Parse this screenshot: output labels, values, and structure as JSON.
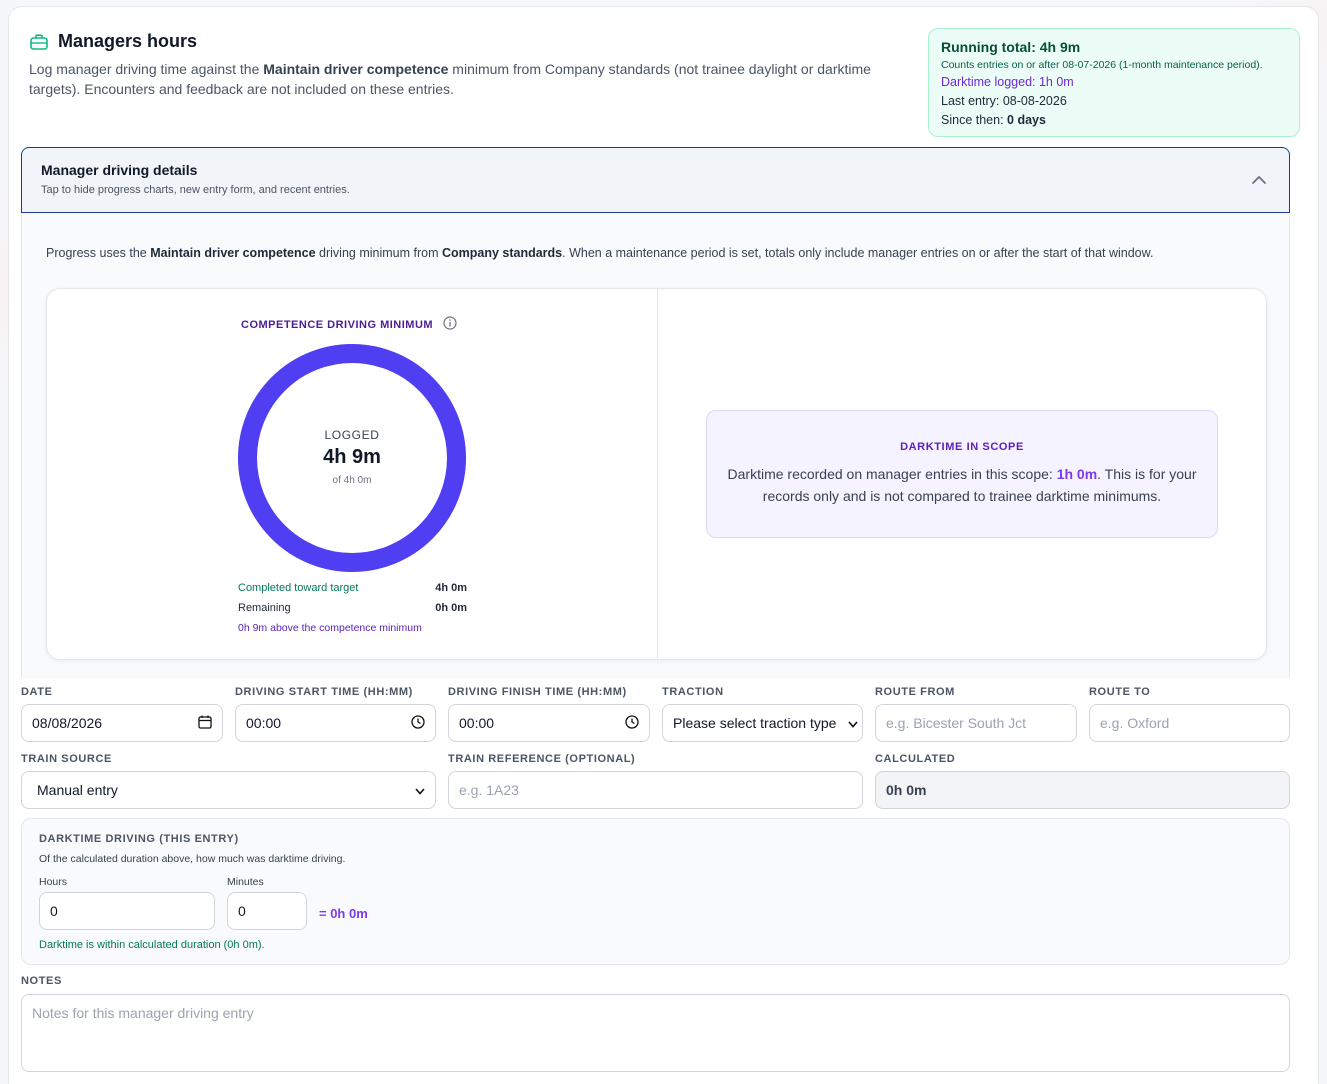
{
  "header": {
    "title": "Managers hours",
    "desc_1": "Log manager driving time against the ",
    "desc_bold": "Maintain driver competence",
    "desc_2": " minimum from Company standards (not trainee daylight or darktime targets). Encounters and feedback are not included on these entries."
  },
  "running": {
    "total": "Running total: 4h 9m",
    "counts": "Counts entries on or after 08-07-2026 (1-month maintenance period).",
    "darktime": "Darktime logged: 1h 0m",
    "last_entry_label": "Last entry: ",
    "last_entry": "08-08-2026",
    "since_label": "Since then: ",
    "since": "0 days"
  },
  "accordion": {
    "title": "Manager driving details",
    "subtitle": "Tap to hide progress charts, new entry form, and recent entries."
  },
  "panel": {
    "intro_1": "Progress uses the ",
    "intro_b1": "Maintain driver competence",
    "intro_2": " driving minimum from ",
    "intro_b2": "Company standards",
    "intro_3": ". When a maintenance period is set, totals only include manager entries on or after the start of that window."
  },
  "competence": {
    "title": "COMPETENCE DRIVING MINIMUM",
    "logged_label": "LOGGED",
    "logged_value": "4h 9m",
    "of_target": "of 4h 0m",
    "progress": 1.0,
    "completed_label": "Completed toward target",
    "completed_value": "4h 0m",
    "remaining_label": "Remaining",
    "remaining_value": "0h 0m",
    "above": "0h 9m above the competence minimum",
    "ring_color": "#4f3ef2"
  },
  "darktime_scope": {
    "title": "DARKTIME IN SCOPE",
    "text_1": "Darktime recorded on manager entries in this scope: ",
    "value": "1h 0m",
    "text_2": ". This is for your records only and is not compared to trainee darktime minimums."
  },
  "form": {
    "date_label": "DATE",
    "date_value": "08/08/2026",
    "start_label": "DRIVING START TIME (HH:MM)",
    "start_value": "00:00",
    "finish_label": "DRIVING FINISH TIME (HH:MM)",
    "finish_value": "00:00",
    "traction_label": "TRACTION",
    "traction_value": "Please select traction type",
    "route_from_label": "ROUTE FROM",
    "route_from_placeholder": "e.g. Bicester South Jct",
    "route_to_label": "ROUTE TO",
    "route_to_placeholder": "e.g. Oxford",
    "source_label": "TRAIN SOURCE",
    "source_value": "Manual entry",
    "ref_label": "TRAIN REFERENCE (OPTIONAL)",
    "ref_placeholder": "e.g. 1A23",
    "calc_label": "CALCULATED",
    "calc_value": "0h 0m",
    "dark_title": "DARKTIME DRIVING (THIS ENTRY)",
    "dark_help": "Of the calculated duration above, how much was darktime driving.",
    "hours_label": "Hours",
    "hours_value": "0",
    "minutes_label": "Minutes",
    "minutes_value": "0",
    "dark_eq": "= 0h 0m",
    "dark_within": "Darktime is within calculated duration (0h 0m).",
    "notes_label": "NOTES",
    "notes_placeholder": "Notes for this manager driving entry"
  }
}
